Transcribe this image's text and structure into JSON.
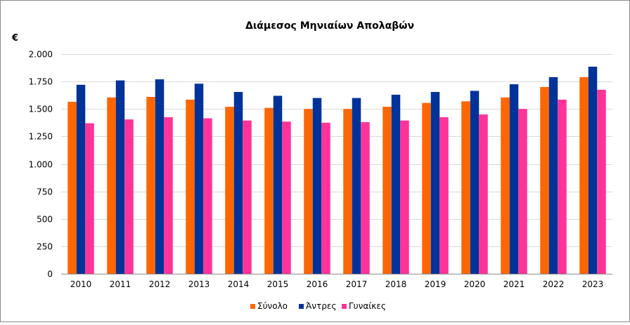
{
  "chart_data": {
    "type": "bar",
    "title": "Διάμεσος Μηνιαίων Απολαβών",
    "ylabel": "€",
    "xlabel": "",
    "ylim": [
      0,
      2000
    ],
    "yticks": [
      0,
      250,
      500,
      750,
      1000,
      1250,
      1500,
      1750,
      2000
    ],
    "ytick_labels": [
      "0",
      "250",
      "500",
      "750",
      "1.000",
      "1.250",
      "1.500",
      "1.750",
      "2.000"
    ],
    "grid": true,
    "legend_position": "bottom",
    "categories": [
      "2010",
      "2011",
      "2012",
      "2013",
      "2014",
      "2015",
      "2016",
      "2017",
      "2018",
      "2019",
      "2020",
      "2021",
      "2022",
      "2023"
    ],
    "series": [
      {
        "name": "Σύνολο",
        "color": "#ff6600",
        "values": [
          1565,
          1605,
          1610,
          1585,
          1520,
          1510,
          1500,
          1500,
          1520,
          1555,
          1570,
          1605,
          1700,
          1790
        ]
      },
      {
        "name": "Άντρες",
        "color": "#003399",
        "values": [
          1720,
          1760,
          1770,
          1730,
          1655,
          1620,
          1600,
          1600,
          1630,
          1655,
          1665,
          1725,
          1790,
          1885
        ]
      },
      {
        "name": "Γυναίκες",
        "color": "#ff3399",
        "values": [
          1370,
          1405,
          1425,
          1415,
          1395,
          1385,
          1375,
          1380,
          1395,
          1425,
          1450,
          1500,
          1585,
          1675
        ]
      }
    ]
  }
}
